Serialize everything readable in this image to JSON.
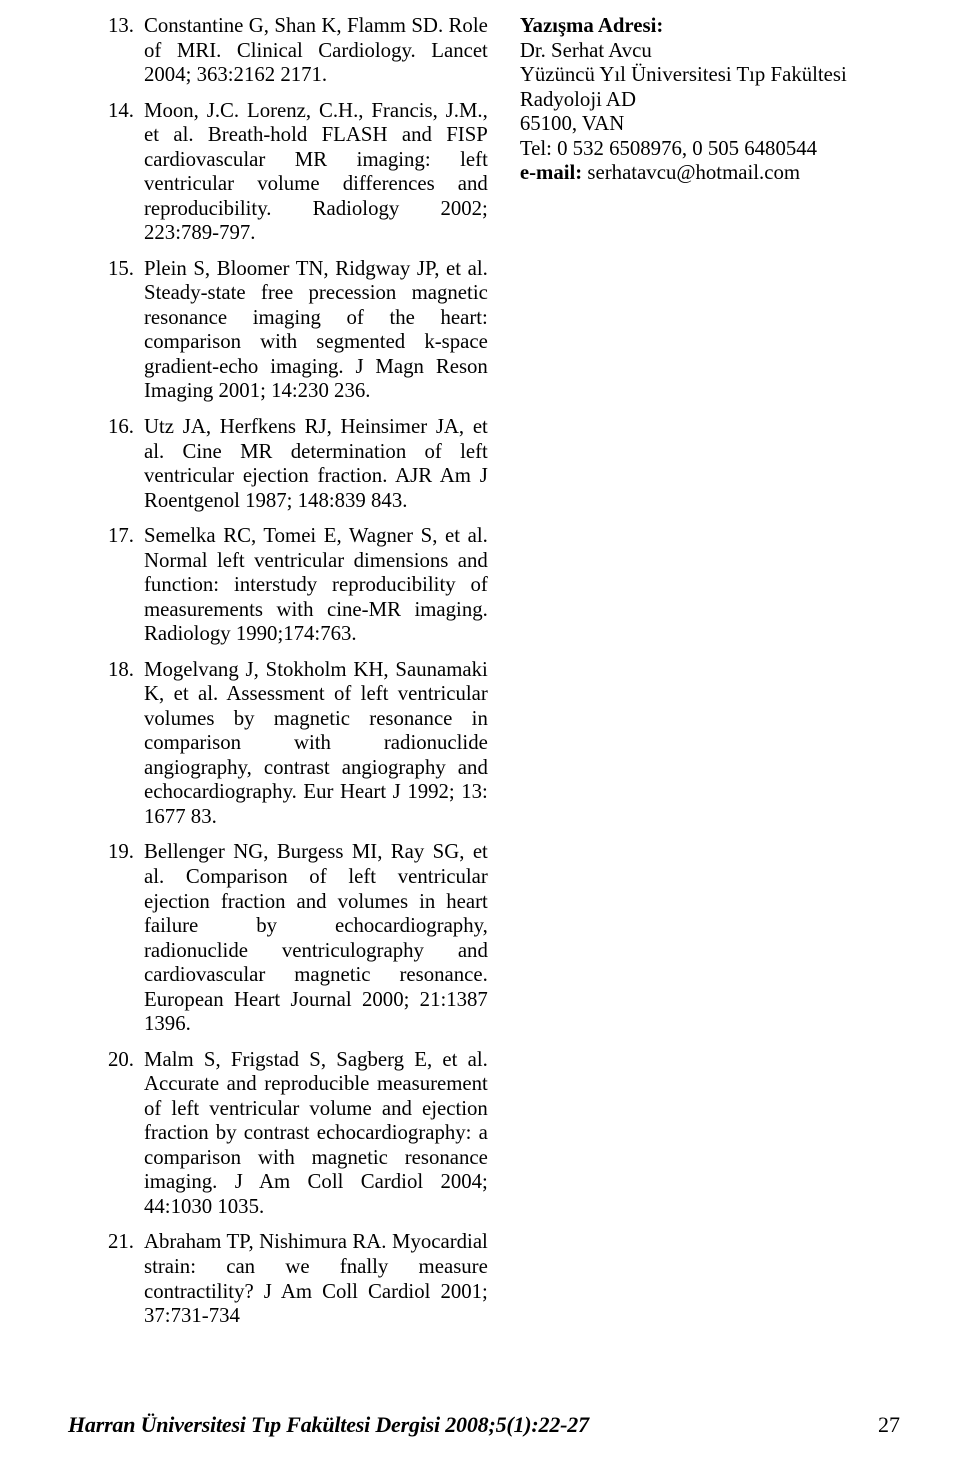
{
  "references": [
    {
      "n": "13.",
      "text": "Constantine G, Shan K, Flamm SD. Role of MRI. Clinical Cardiology. Lancet 2004; 363:2162 2171."
    },
    {
      "n": "14.",
      "text": "Moon, J.C. Lorenz, C.H., Francis, J.M., et al. Breath-hold FLASH and FISP cardiovascular MR imaging: left ventricular volume differences and reproducibility. Radiology 2002; 223:789-797."
    },
    {
      "n": "15.",
      "text": "Plein S, Bloomer TN, Ridgway JP, et al. Steady-state free precession magnetic resonance imaging of the heart: comparison with segmented k-space gradient-echo imaging. J Magn Reson Imaging 2001; 14:230 236."
    },
    {
      "n": "16.",
      "text": "Utz JA, Herfkens RJ, Heinsimer JA, et al. Cine MR determination of left ventricular ejection fraction. AJR Am J Roentgenol 1987; 148:839 843."
    },
    {
      "n": "17.",
      "text": "Semelka RC, Tomei E, Wagner S, et al. Normal left ventricular dimensions and function: interstudy reproducibility of measurements with cine-MR imaging. Radiology 1990;174:763."
    },
    {
      "n": "18.",
      "text": "Mogelvang J, Stokholm KH, Saunamaki K, et al. Assessment of left ventricular volumes by magnetic resonance in comparison with radionuclide angiography, contrast angiography and echocardiography. Eur Heart J 1992; 13: 1677 83."
    },
    {
      "n": "19.",
      "text": "Bellenger NG, Burgess MI, Ray SG, et al. Comparison of left ventricular ejection fraction and volumes in heart failure by echocardiography, radionuclide ventriculography and cardiovascular magnetic resonance. European Heart Journal 2000; 21:1387 1396."
    },
    {
      "n": "20.",
      "text": "Malm S, Frigstad S, Sagberg E, et al. Accurate and reproducible measurement of left ventricular volume and ejection fraction by contrast echocardiography: a comparison with magnetic resonance imaging. J Am Coll Cardiol 2004; 44:1030 1035."
    },
    {
      "n": "21.",
      "text": "Abraham TP, Nishimura RA. Myocardial strain: can we fnally measure contractility? J Am Coll Cardiol 2001; 37:731-734"
    }
  ],
  "address": {
    "heading": "Yazışma Adresi:",
    "name": "Dr. Serhat Avcu",
    "affil": "Yüzüncü Yıl Üniversitesi Tıp Fakültesi Radyoloji AD",
    "cityline": "65100, VAN",
    "tel": "Tel: 0 532 6508976, 0 505 6480544",
    "email_label": "e-mail:",
    "email_value": "serhatavcu@hotmail.com"
  },
  "footer": {
    "journal": "Harran Üniversitesi Tıp Fakültesi Dergisi 2008;5(1):22-27",
    "page": "27"
  }
}
